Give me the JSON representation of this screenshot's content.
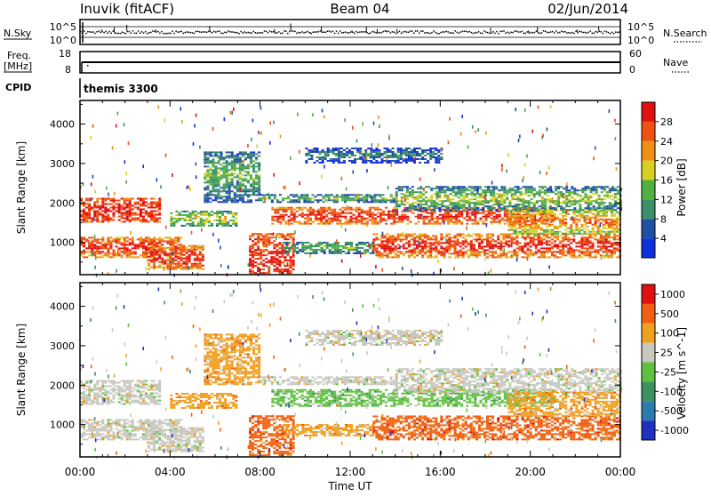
{
  "header": {
    "station": "Inuvik (fitACF)",
    "beam": "Beam 04",
    "date": "02/Jun/2014"
  },
  "top_panels": {
    "nsky_label": "N.Sky",
    "nsky_ticks": [
      "10^5",
      "10^0"
    ],
    "nsearch_label": "N.Search",
    "nsearch_ticks": [
      "10^5",
      "10^0"
    ],
    "freq_label": "Freq.",
    "freq_unit": "[MHz]",
    "freq_ticks": [
      "18",
      "8"
    ],
    "nave_label": "Nave",
    "nave_ticks": [
      "60",
      "0"
    ],
    "cpid_label": "CPID",
    "cpid_value": "themis 3300"
  },
  "chart_data": [
    {
      "type": "heatmap",
      "name": "power-panel",
      "ylabel": "Slant Range [km]",
      "ylim": [
        180,
        4600
      ],
      "yticks": [
        1000,
        2000,
        3000,
        4000
      ],
      "ytick_labels": [
        "1000",
        "2000",
        "3000",
        "4000"
      ],
      "colorbar_label": "Power [dB]",
      "colorbar_ticks": [
        "4",
        "8",
        "12",
        "16",
        "20",
        "24",
        "28"
      ],
      "colors": [
        "#1030e0",
        "#2050a0",
        "#3d8f6a",
        "#50b040",
        "#d8d020",
        "#f09010",
        "#f05010",
        "#e01010"
      ]
    },
    {
      "type": "heatmap",
      "name": "velocity-panel",
      "ylabel": "Slant Range [km]",
      "ylim": [
        180,
        4600
      ],
      "yticks": [
        1000,
        2000,
        3000,
        4000
      ],
      "ytick_labels": [
        "1000",
        "2000",
        "3000",
        "4000"
      ],
      "colorbar_label": "Velocity [m s^-1]",
      "colorbar_ticks": [
        "1000",
        "500",
        "100",
        "25",
        "-25",
        "-100",
        "-500",
        "-1000"
      ],
      "colors": [
        "#2030c0",
        "#2c7ab0",
        "#3d9060",
        "#60c040",
        "#c8c8c0",
        "#f0a020",
        "#f06010",
        "#e01010"
      ]
    }
  ],
  "xaxis": {
    "label": "Time UT",
    "ticks": [
      "00:00",
      "04:00",
      "08:00",
      "12:00",
      "16:00",
      "20:00",
      "00:00"
    ]
  }
}
